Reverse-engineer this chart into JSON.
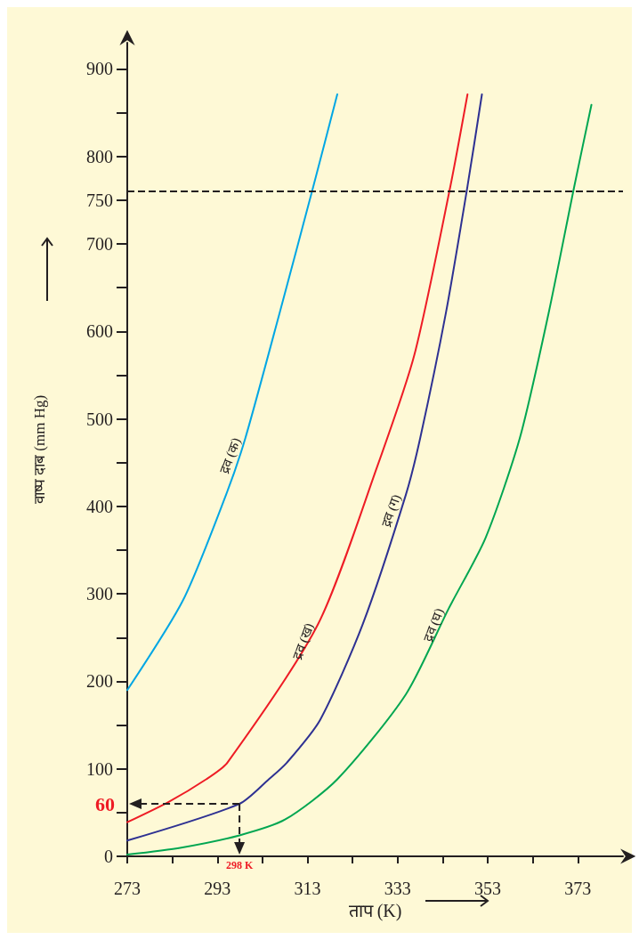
{
  "chart_data": {
    "type": "line",
    "xlabel": "ताप (K)",
    "ylabel": "वाष्प दाब (mm Hg)",
    "xlim": [
      273,
      383
    ],
    "ylim": [
      0,
      930
    ],
    "xticks": [
      273,
      {
        "value": 283,
        "label": null
      },
      293,
      {
        "value": 303,
        "label": null
      },
      313,
      {
        "value": 323,
        "label": null
      },
      333,
      {
        "value": 343,
        "label": null
      },
      353,
      {
        "value": 363,
        "label": null
      },
      373
    ],
    "yticks": [
      0,
      {
        "value": 50,
        "label": null
      },
      100,
      {
        "value": 150,
        "label": null
      },
      200,
      {
        "value": 250,
        "label": null
      },
      300,
      {
        "value": 350,
        "label": null
      },
      400,
      {
        "value": 450,
        "label": null
      },
      500,
      {
        "value": 550,
        "label": null
      },
      600,
      {
        "value": 650,
        "label": null
      },
      700,
      750,
      800,
      {
        "value": 850,
        "label": null
      },
      900
    ],
    "grid": false,
    "legend": false,
    "marker": "none",
    "line_style": "solid",
    "series": [
      {
        "name": "द्रव (क)",
        "color": "#00a6e4",
        "x": [
          273,
          285.4,
          294.9,
          299.2,
          306.8,
          314.4,
          319.6
        ],
        "values": [
          190,
          293,
          413,
          478,
          621,
          768,
          871
        ]
      },
      {
        "name": "द्रव (ख)",
        "color": "#ee1c25",
        "x": [
          273,
          282.1,
          290.5,
          295.2,
          315.4,
          328.5,
          336.7,
          344.7,
          348.5
        ],
        "values": [
          39,
          62,
          88,
          107,
          266,
          446,
          573,
          766,
          871
        ]
      },
      {
        "name": "द्रव (ग)",
        "color": "#2e3192",
        "x": [
          273,
          297.9,
          304.4,
          308.4,
          315.8,
          325.3,
          334.8,
          338,
          343.7,
          348.5,
          351.7
        ],
        "values": [
          18,
          60,
          88,
          107,
          156,
          266,
          413,
          478,
          621,
          766,
          871
        ]
      },
      {
        "name": "द्रव (घ)",
        "color": "#00a651",
        "x": [
          273,
          285,
          297.9,
          308,
          319.6,
          334.8,
          344.3,
          352.5,
          360.1,
          366.5,
          372.2,
          376
        ],
        "values": [
          2,
          10,
          24,
          42,
          88,
          185,
          283,
          364,
          478,
          621,
          766,
          859
        ]
      }
    ],
    "ref_lines": [
      {
        "axis": "y",
        "value": 760,
        "label": null,
        "color": "#231f20",
        "line_style": "dashed"
      }
    ],
    "annotations": [
      {
        "text": "60",
        "x": 297.9,
        "y": 60
      },
      {
        "text": "298 K",
        "x": 297.9,
        "y": 60
      }
    ]
  }
}
